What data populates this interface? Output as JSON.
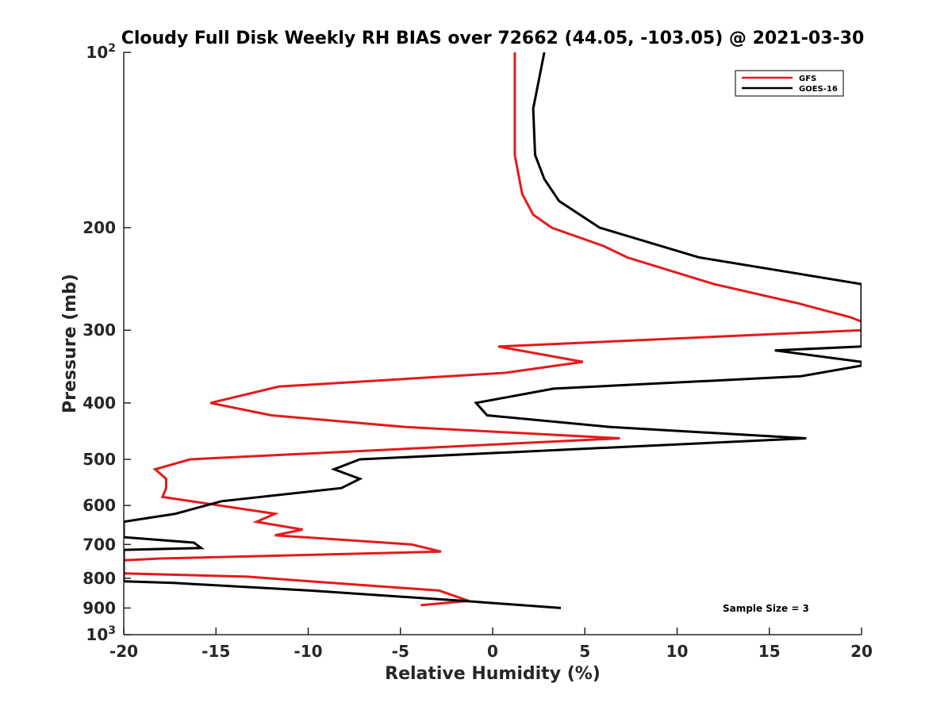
{
  "chart_data": {
    "type": "line",
    "title": "Cloudy Full Disk Weekly RH BIAS over 72662 (44.05, -103.05) @ 2021-03-30",
    "xlabel": "Relative Humidity (%)",
    "ylabel": "Pressure (mb)",
    "xlim": [
      -20,
      20
    ],
    "ylim": [
      100,
      1000
    ],
    "y_scale": "log",
    "y_reversed": true,
    "x_ticks": [
      "-20",
      "-15",
      "-10",
      "-5",
      "0",
      "5",
      "10",
      "15",
      "20"
    ],
    "y_ticks": [
      {
        "value": 100,
        "base": "10",
        "exp": "2"
      },
      {
        "value": 200,
        "label": "200"
      },
      {
        "value": 300,
        "label": "300"
      },
      {
        "value": 400,
        "label": "400"
      },
      {
        "value": 500,
        "label": "500"
      },
      {
        "value": 600,
        "label": "600"
      },
      {
        "value": 700,
        "label": "700"
      },
      {
        "value": 800,
        "label": "800"
      },
      {
        "value": 900,
        "label": "900"
      },
      {
        "value": 1000,
        "base": "10",
        "exp": "3"
      }
    ],
    "legend_position": "top-right",
    "annotation": "Sample Size = 3",
    "series": [
      {
        "name": "GFS",
        "color": "#e41a1c",
        "points": [
          [
            1.2,
            100
          ],
          [
            1.2,
            125
          ],
          [
            1.2,
            150
          ],
          [
            1.6,
            175
          ],
          [
            2.2,
            190
          ],
          [
            3.2,
            200
          ],
          [
            6.0,
            215
          ],
          [
            7.3,
            225
          ],
          [
            12,
            250
          ],
          [
            16.6,
            270
          ],
          [
            19.4,
            285
          ],
          [
            20,
            290
          ],
          [
            20,
            300
          ],
          [
            0.3,
            320
          ],
          [
            4.9,
            340
          ],
          [
            0.7,
            355
          ],
          [
            -11.6,
            375
          ],
          [
            -15.3,
            400
          ],
          [
            -12.0,
            420
          ],
          [
            -4.7,
            440
          ],
          [
            6.9,
            460
          ],
          [
            -16.4,
            500
          ],
          [
            -18.3,
            520
          ],
          [
            -17.7,
            540
          ],
          [
            -17.7,
            560
          ],
          [
            -17.9,
            580
          ],
          [
            -11.8,
            620
          ],
          [
            -12.8,
            640
          ],
          [
            -10.3,
            660
          ],
          [
            -11.8,
            675
          ],
          [
            -4.4,
            700
          ],
          [
            -2.8,
            720
          ],
          [
            -18.0,
            740
          ],
          [
            -20,
            745
          ],
          [
            -20,
            785
          ],
          [
            -13.3,
            795
          ],
          [
            -8.7,
            815
          ],
          [
            -2.9,
            840
          ],
          [
            -1.3,
            875
          ],
          [
            -3.9,
            890
          ]
        ]
      },
      {
        "name": "GOES-16",
        "color": "#000000",
        "points": [
          [
            2.8,
            100
          ],
          [
            2.2,
            125
          ],
          [
            2.3,
            150
          ],
          [
            2.8,
            165
          ],
          [
            3.6,
            180
          ],
          [
            5.8,
            200
          ],
          [
            11.2,
            225
          ],
          [
            20,
            250
          ],
          [
            20,
            320
          ],
          [
            15.3,
            325
          ],
          [
            20,
            340
          ],
          [
            20,
            345
          ],
          [
            16.7,
            360
          ],
          [
            3.3,
            378
          ],
          [
            -0.9,
            400
          ],
          [
            -0.3,
            420
          ],
          [
            6.4,
            440
          ],
          [
            17.0,
            460
          ],
          [
            -7.2,
            500
          ],
          [
            -8.6,
            520
          ],
          [
            -7.2,
            540
          ],
          [
            -8.2,
            560
          ],
          [
            -14.7,
            590
          ],
          [
            -17.2,
            620
          ],
          [
            -20,
            640
          ],
          [
            -20,
            680
          ],
          [
            -16.2,
            695
          ],
          [
            -15.8,
            710
          ],
          [
            -20,
            715
          ],
          [
            -20,
            810
          ],
          [
            -17.3,
            815
          ],
          [
            -9.9,
            840
          ],
          [
            -1.6,
            875
          ],
          [
            3.7,
            900
          ]
        ]
      }
    ]
  }
}
